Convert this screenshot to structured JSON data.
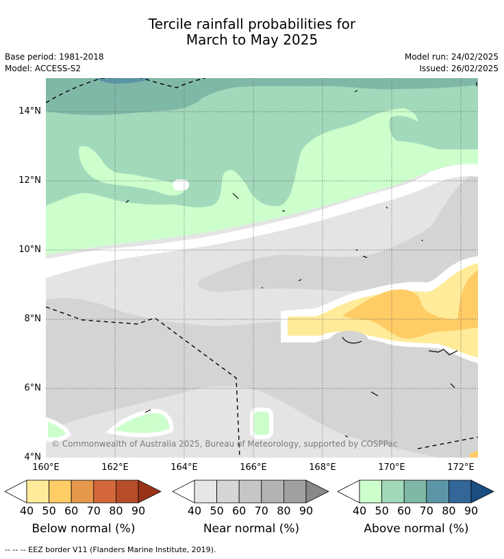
{
  "title": {
    "line1": "Tercile rainfall probabilities for",
    "line2": "March to May 2025"
  },
  "meta": {
    "base_period": "Base period: 1981-2018",
    "model": "Model: ACCESS-S2",
    "model_run": "Model run: 24/02/2025",
    "issued": "Issued: 26/02/2025"
  },
  "axes": {
    "lat_labels": [
      "14°N",
      "12°N",
      "10°N",
      "8°N",
      "6°N",
      "4°N"
    ],
    "lon_labels": [
      "160°E",
      "162°E",
      "164°E",
      "166°E",
      "168°E",
      "170°E",
      "172°E"
    ]
  },
  "copyright": "© Commonwealth of Australia 2025, Bureau of Meteorology, supported by COSPPac",
  "legends": [
    {
      "title": "Below normal (%)",
      "ticks": [
        "40",
        "50",
        "60",
        "70",
        "80",
        "90"
      ],
      "colors": [
        "#ffeb99",
        "#ffcc66",
        "#e6994d",
        "#d4683a",
        "#b84d2a",
        "#993318"
      ]
    },
    {
      "title": "Near normal (%)",
      "ticks": [
        "40",
        "50",
        "60",
        "70",
        "80",
        "90"
      ],
      "colors": [
        "#e6e6e6",
        "#d6d6d6",
        "#c6c6c6",
        "#b4b4b4",
        "#a0a0a0",
        "#888888"
      ]
    },
    {
      "title": "Above normal (%)",
      "ticks": [
        "40",
        "50",
        "60",
        "70",
        "80",
        "90"
      ],
      "colors": [
        "#ccffcc",
        "#a3d9bb",
        "#80b8a8",
        "#5c96a6",
        "#336699",
        "#1a4d80"
      ]
    }
  ],
  "footnote": "--  --  -- EEZ border V11 (Flanders Marine Institute, 2019)."
}
